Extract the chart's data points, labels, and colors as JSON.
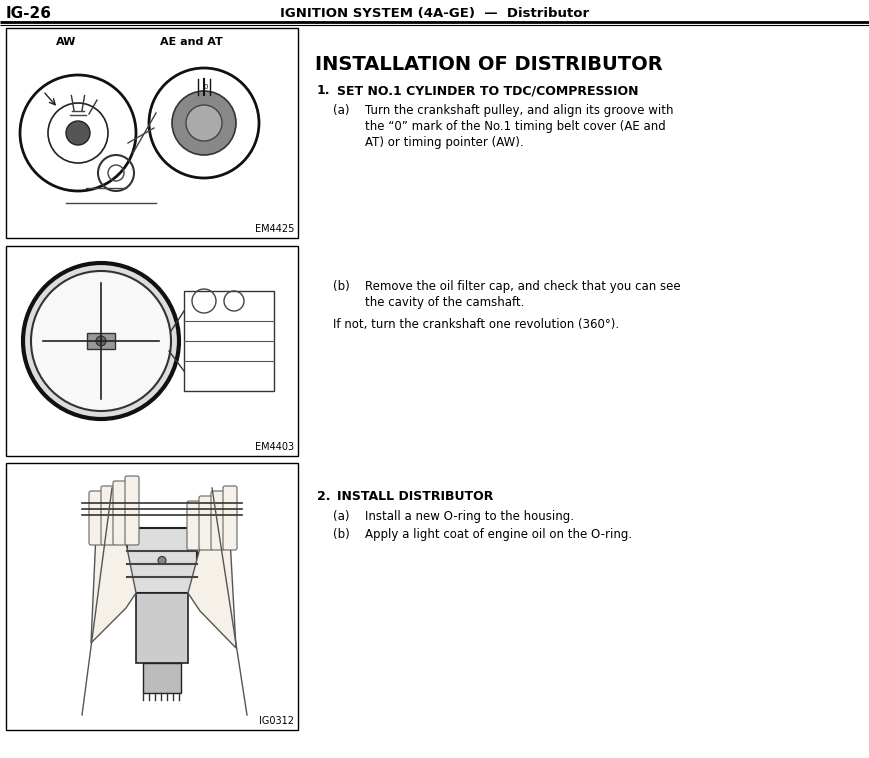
{
  "bg_color": "#ffffff",
  "font_color": "#000000",
  "header_text_left": "IG-26",
  "header_text_center": "IGNITION SYSTEM (4A-GE)  —  Distributor",
  "title": "INSTALLATION OF DISTRIBUTOR",
  "section1_num": "1.",
  "section1_title": "SET NO.1 CYLINDER TO TDC/COMPRESSION",
  "step_a1_label": "(a)",
  "step_a1_line1": "Turn the crankshaft pulley, and align its groove with",
  "step_a1_line2": "the “0” mark of the No.1 timing belt cover (AE and",
  "step_a1_line3": "AT) or timing pointer (AW).",
  "step_b1_label": "(b)",
  "step_b1_line1": "Remove the oil filter cap, and check that you can see",
  "step_b1_line2": "the cavity of the camshaft.",
  "step_if_text": "If not, turn the crankshaft one revolution (360°).",
  "section2_num": "2.",
  "section2_title": "INSTALL DISTRIBUTOR",
  "step_a2_label": "(a)",
  "step_a2_text": "Install a new O-ring to the housing.",
  "step_b2_label": "(b)",
  "step_b2_text": "Apply a light coat of engine oil on the O-ring.",
  "fig1_label": "EM4425",
  "fig1_sublabel_left": "AW",
  "fig1_sublabel_right": "AE and AT",
  "fig2_label": "EM4403",
  "fig3_label": "IG0312"
}
